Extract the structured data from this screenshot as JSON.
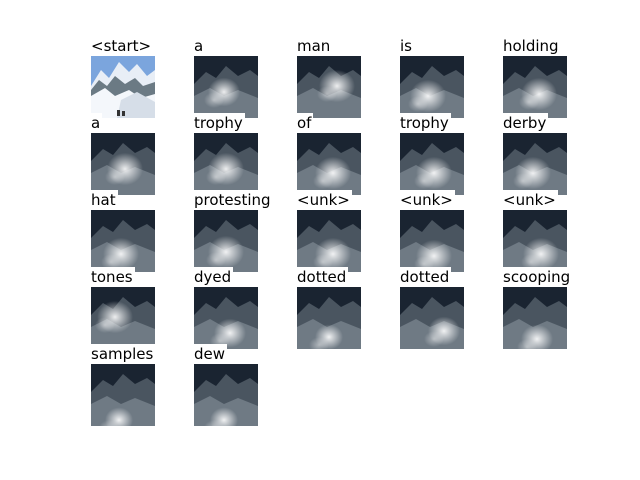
{
  "caption_tokens": [
    "<start>",
    "a",
    "man",
    "is",
    "holding",
    "a",
    "trophy",
    "of",
    "trophy",
    "derby",
    "hat",
    "protesting",
    "<unk>",
    "<unk>",
    "<unk>",
    "tones",
    "dyed",
    "dotted",
    "dotted",
    "scooping",
    "samples",
    "dew"
  ],
  "grid": {
    "columns": 5,
    "rows": 5
  },
  "first_image": "mountain-snow-photo",
  "other_images": "attention-overlay"
}
